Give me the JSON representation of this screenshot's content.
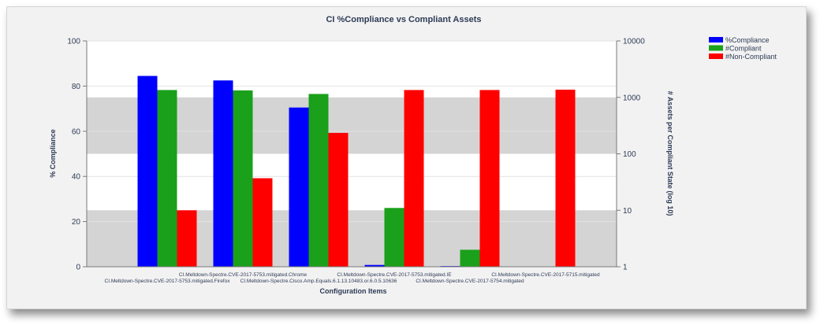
{
  "chart_data": {
    "type": "bar",
    "title": "CI %Compliance vs Compliant Assets",
    "xlabel": "Configuration Items",
    "ylabel": "% Compliance",
    "y2label": "# Assets per Compliant State (log 10)",
    "ylim": [
      0,
      100
    ],
    "y2lim": [
      1,
      10000
    ],
    "y2scale": "log10",
    "yticks": [
      "0",
      "20",
      "40",
      "60",
      "80",
      "100"
    ],
    "y2ticks": [
      "1",
      "10",
      "100",
      "1000",
      "10000"
    ],
    "grid": true,
    "legend_position": "top-right",
    "categories": [
      "CI.Meltdown-Spectre.CVE-2017-5753.mitigated.Firefox",
      "CI.Meltdown-Spectre.CVE-2017-5753.mitigated.Chrome",
      "CI.Meltdown-Spectre.Cisco.Amp.Equals.6.1.13.10483.or.6.0.5.10636",
      "CI.Meltdown-Spectre.CVE-2017-5753.mitigated.IE",
      "CI.Meltdown-Spectre.CVE-2017-5754.mitigated",
      "CI.Meltdown-Spectre.CVE-2017-5715.mitigated"
    ],
    "series": [
      {
        "name": "%Compliance",
        "axis": "left",
        "color": "#0000ff",
        "values": [
          84.5,
          82.5,
          70.5,
          0.8,
          0.3,
          0
        ]
      },
      {
        "name": "#Compliant",
        "axis": "right",
        "color": "#1aa01a",
        "values": [
          1350,
          1330,
          1150,
          11,
          2,
          0
        ]
      },
      {
        "name": "#Non-Compliant",
        "axis": "right",
        "color": "#ff0000",
        "values": [
          10,
          37,
          235,
          1350,
          1350,
          1370
        ]
      }
    ]
  }
}
